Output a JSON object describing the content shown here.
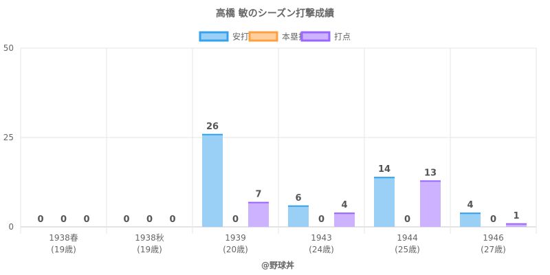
{
  "chart_data": {
    "type": "bar",
    "title": "高橋 敏のシーズン打撃成績",
    "categories": [
      [
        "1938春",
        "(19歳)"
      ],
      [
        "1938秋",
        "(19歳)"
      ],
      [
        "1939",
        "(20歳)"
      ],
      [
        "1943",
        "(24歳)"
      ],
      [
        "1944",
        "(25歳)"
      ],
      [
        "1946",
        "(27歳)"
      ]
    ],
    "series": [
      {
        "name": "安打",
        "values": [
          0,
          0,
          26,
          6,
          14,
          4
        ],
        "fill": "#9ad0f5",
        "stroke": "#36a2eb"
      },
      {
        "name": "本塁打",
        "values": [
          0,
          0,
          0,
          0,
          0,
          0
        ],
        "fill": "#ffcf9f",
        "stroke": "#ff9f40"
      },
      {
        "name": "打点",
        "values": [
          0,
          0,
          7,
          4,
          13,
          1
        ],
        "fill": "#ccb2ff",
        "stroke": "#9966ff"
      }
    ],
    "yticks": [
      0,
      25,
      50
    ],
    "ylim": [
      0,
      50
    ],
    "grid": true,
    "legend_position": "top",
    "xlabel": "",
    "ylabel": ""
  },
  "credit": "@野球丼"
}
